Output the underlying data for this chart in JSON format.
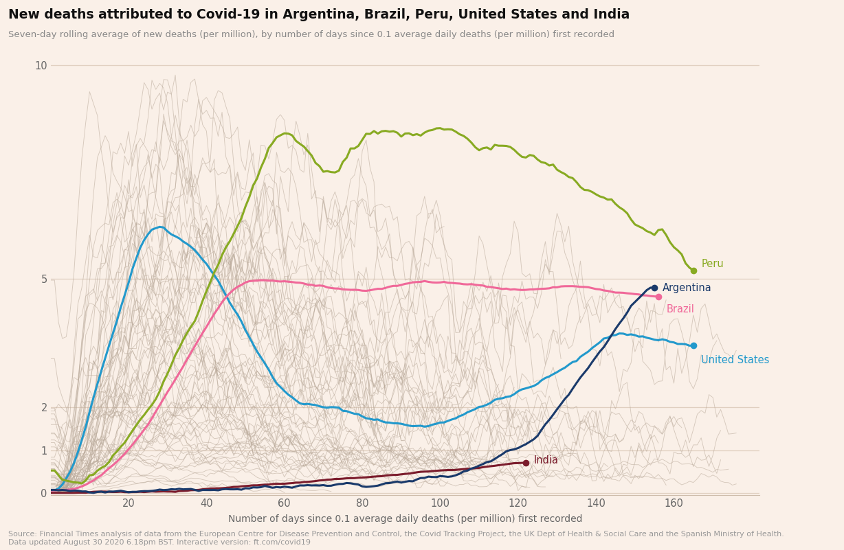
{
  "title": "New deaths attributed to Covid-19 in Argentina, Brazil, Peru, United States and India",
  "subtitle": "Seven-day rolling average of new deaths (per million), by number of days since 0.1 average daily deaths (per million) first recorded",
  "xlabel": "Number of days since 0.1 average daily deaths (per million) first recorded",
  "source_line1": "Source: Financial Times analysis of data from the European Centre for Disease Prevention and Control, the Covid Tracking Project, the UK Dept of Health & Social Care and the Spanish Ministry of Health.",
  "source_line2": "Data updated August 30 2020 6.18pm BST. Interactive version: ft.com/covid19",
  "bg_color": "#FAF0E8",
  "grid_color": "#E0CFC0",
  "xlim": [
    0,
    182
  ],
  "ylim": [
    -0.05,
    10.5
  ],
  "yticks": [
    0,
    1,
    2,
    5,
    10
  ],
  "xticks": [
    20,
    40,
    60,
    80,
    100,
    120,
    140,
    160
  ],
  "colors": {
    "Argentina": "#1a3a6b",
    "Brazil": "#f06899",
    "Peru": "#88aa22",
    "United_States": "#2299cc",
    "India": "#7b1c2c"
  }
}
